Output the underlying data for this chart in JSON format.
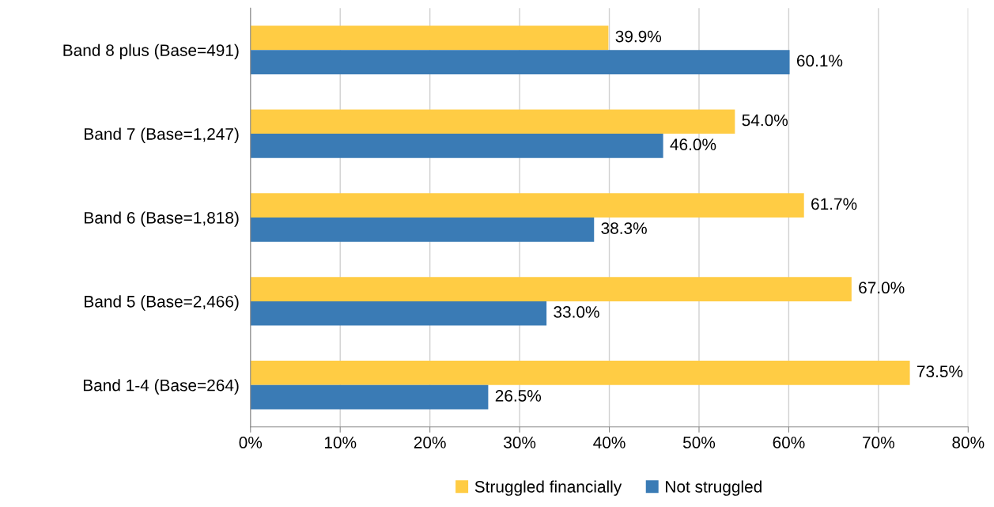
{
  "chart_data": {
    "type": "bar",
    "orientation": "horizontal",
    "categories": [
      "Band 8 plus (Base=491)",
      "Band 7 (Base=1,247)",
      "Band 6 (Base=1,818)",
      "Band 5 (Base=2,466)",
      "Band 1-4 (Base=264)"
    ],
    "series": [
      {
        "name": "Struggled financially",
        "color": "#ffcc44",
        "values": [
          39.9,
          54.0,
          61.7,
          67.0,
          73.5
        ],
        "value_labels": [
          "39.9%",
          "54.0%",
          "61.7%",
          "67.0%",
          "73.5%"
        ]
      },
      {
        "name": "Not struggled",
        "color": "#3a7bb5",
        "values": [
          60.1,
          46.0,
          38.3,
          33.0,
          26.5
        ],
        "value_labels": [
          "60.1%",
          "46.0%",
          "38.3%",
          "33.0%",
          "26.5%"
        ]
      }
    ],
    "xlim": [
      0,
      80
    ],
    "xticks": [
      {
        "value": 0,
        "label": "0%"
      },
      {
        "value": 10,
        "label": "10%"
      },
      {
        "value": 20,
        "label": "20%"
      },
      {
        "value": 30,
        "label": "30%"
      },
      {
        "value": 40,
        "label": "40%"
      },
      {
        "value": 50,
        "label": "50%"
      },
      {
        "value": 60,
        "label": "60%"
      },
      {
        "value": 70,
        "label": "70%"
      },
      {
        "value": 80,
        "label": "80%"
      }
    ],
    "grid": "x",
    "legend": "bottom"
  }
}
